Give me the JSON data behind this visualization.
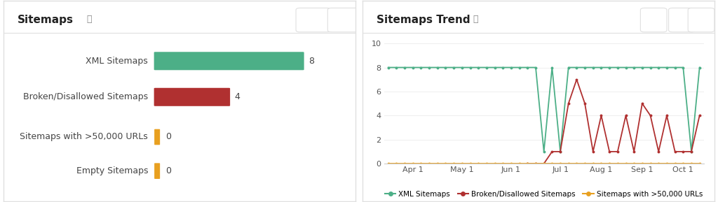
{
  "left_title": "Sitemaps",
  "right_title": "Sitemaps Trend",
  "bar_data": [
    {
      "label": "XML Sitemaps",
      "value": 8,
      "max_val": 8,
      "color": "#4CAF87",
      "type": "bar"
    },
    {
      "label": "Broken/Disallowed Sitemaps",
      "value": 4,
      "max_val": 8,
      "color": "#B03030",
      "type": "bar"
    },
    {
      "label": "Sitemaps with >50,000 URLs",
      "value": 0,
      "color": "#E8A020",
      "type": "tick"
    },
    {
      "label": "Empty Sitemaps",
      "value": 0,
      "color": "#E8A020",
      "type": "tick"
    }
  ],
  "trend": {
    "x_labels": [
      "Apr 1",
      "May 1",
      "Jun 1",
      "Jul 1",
      "Aug 1",
      "Sep 1",
      "Oct 1"
    ],
    "xml_sitemaps": {
      "x": [
        0,
        1,
        2,
        3,
        4,
        5,
        6,
        7,
        8,
        9,
        10,
        11,
        12,
        13,
        14,
        15,
        16,
        17,
        18,
        19,
        20,
        21,
        22,
        23,
        24,
        25,
        26,
        27,
        28,
        29,
        30,
        31,
        32,
        33,
        34,
        35,
        36,
        37,
        38
      ],
      "y": [
        8,
        8,
        8,
        8,
        8,
        8,
        8,
        8,
        8,
        8,
        8,
        8,
        8,
        8,
        8,
        8,
        8,
        8,
        8,
        1,
        8,
        1,
        8,
        8,
        8,
        8,
        8,
        8,
        8,
        8,
        8,
        8,
        8,
        8,
        8,
        8,
        8,
        1,
        8
      ],
      "color": "#4CAF87"
    },
    "broken_sitemaps": {
      "x": [
        17,
        18,
        19,
        20,
        21,
        22,
        23,
        24,
        25,
        26,
        27,
        28,
        29,
        30,
        31,
        32,
        33,
        34,
        35,
        36,
        37,
        38
      ],
      "y": [
        0,
        0,
        0,
        1,
        1,
        5,
        7,
        5,
        1,
        4,
        1,
        1,
        4,
        1,
        5,
        4,
        1,
        4,
        1,
        1,
        1,
        4
      ],
      "color": "#B03030"
    },
    "sitemaps_50k": {
      "x": [
        0,
        1,
        2,
        3,
        4,
        5,
        6,
        7,
        8,
        9,
        10,
        11,
        12,
        13,
        14,
        15,
        16,
        17,
        18,
        19,
        20,
        21,
        22,
        23,
        24,
        25,
        26,
        27,
        28,
        29,
        30,
        31,
        32,
        33,
        34,
        35,
        36,
        37,
        38
      ],
      "y": [
        0,
        0,
        0,
        0,
        0,
        0,
        0,
        0,
        0,
        0,
        0,
        0,
        0,
        0,
        0,
        0,
        0,
        0,
        0,
        0,
        0,
        0,
        0,
        0,
        0,
        0,
        0,
        0,
        0,
        0,
        0,
        0,
        0,
        0,
        0,
        0,
        0,
        0,
        0
      ],
      "color": "#E8A020"
    },
    "ylim": [
      0,
      10
    ],
    "yticks": [
      0,
      2,
      4,
      6,
      8,
      10
    ],
    "x_tick_positions": [
      3,
      9,
      15,
      21,
      26,
      31,
      36
    ],
    "total_points": 39
  },
  "bg_color": "#ffffff",
  "border_color": "#e0e0e0",
  "title_fontsize": 11,
  "label_fontsize": 9,
  "tick_fontsize": 8
}
